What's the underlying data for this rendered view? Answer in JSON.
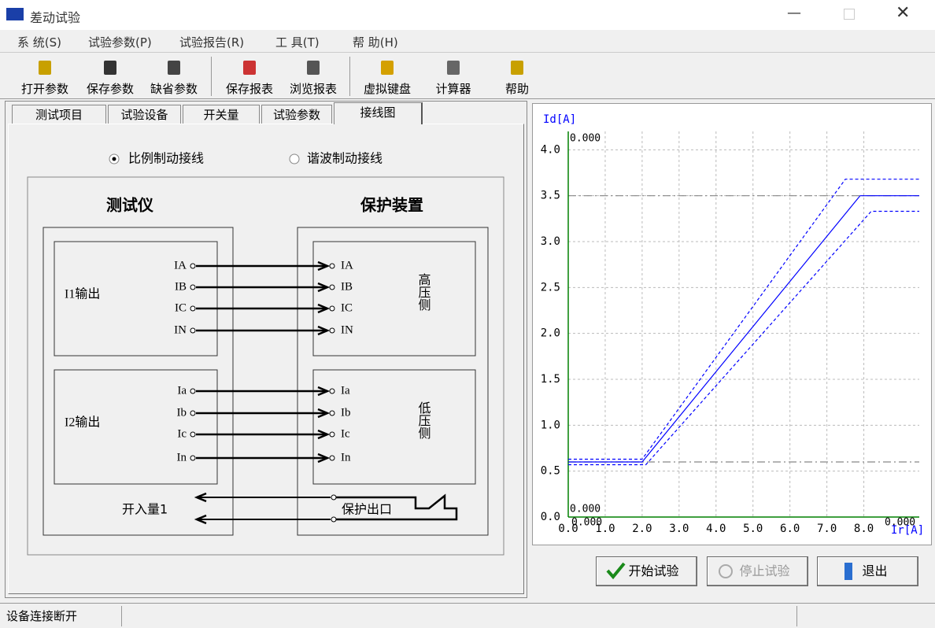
{
  "window": {
    "title": "差动试验"
  },
  "menu": [
    "系 统(S)",
    "试验参数(P)",
    "试验报告(R)",
    "工 具(T)",
    "帮 助(H)"
  ],
  "toolbar": [
    "打开参数",
    "保存参数",
    "缺省参数",
    "保存报表",
    "浏览报表",
    "虚拟键盘",
    "计算器",
    "帮助"
  ],
  "tabs": [
    "测试项目",
    "试验设备",
    "开关量",
    "试验参数",
    "接线图"
  ],
  "wiring": {
    "modes": [
      "比例制动接线",
      "谐波制动接线"
    ],
    "tester_title": "测试仪",
    "device_title": "保护装置",
    "groups": [
      {
        "output": "I1输出",
        "side": "高压侧",
        "channels": [
          "IA",
          "IB",
          "IC",
          "IN"
        ]
      },
      {
        "output": "I2输出",
        "side": "低压侧",
        "channels": [
          "Ia",
          "Ib",
          "Ic",
          "In"
        ]
      }
    ],
    "binary_input": "开入量1",
    "protection_output": "保护出口"
  },
  "plot": {
    "y_label": "Id[A]",
    "x_label": "Ir[A]",
    "xlim": [
      0,
      9.5
    ],
    "ylim": [
      0,
      4.2
    ],
    "xticks": [
      {
        "value": 0,
        "label": "0.0"
      },
      {
        "value": 1,
        "label": "1.0"
      },
      {
        "value": 2,
        "label": "2.0"
      },
      {
        "value": 3,
        "label": "3.0"
      },
      {
        "value": 4,
        "label": "4.0"
      },
      {
        "value": 5,
        "label": "5.0"
      },
      {
        "value": 6,
        "label": "6.0"
      },
      {
        "value": 7,
        "label": "7.0"
      },
      {
        "value": 8,
        "label": "8.0"
      }
    ],
    "yticks": [
      {
        "value": 0,
        "label": "0.0"
      },
      {
        "value": 0.5,
        "label": "0.5"
      },
      {
        "value": 1,
        "label": "1.0"
      },
      {
        "value": 1.5,
        "label": "1.5"
      },
      {
        "value": 2,
        "label": "2.0"
      },
      {
        "value": 2.5,
        "label": "2.5"
      },
      {
        "value": 3,
        "label": "3.0"
      },
      {
        "value": 3.5,
        "label": "3.5"
      },
      {
        "value": 4,
        "label": "4.0"
      }
    ],
    "grid": true,
    "ref_lines": [
      3.5,
      0.6
    ],
    "color": "#0000ff",
    "curves": [
      {
        "style": "solid",
        "x": [
          0,
          2,
          7.9,
          9.5
        ],
        "y": [
          0.6,
          0.6,
          3.5,
          3.5
        ]
      },
      {
        "style": "dashed",
        "x": [
          0,
          2,
          7.5,
          9.5
        ],
        "y": [
          0.63,
          0.63,
          3.68,
          3.68
        ]
      },
      {
        "style": "dashed",
        "x": [
          0,
          2.1,
          8.2,
          9.5
        ],
        "y": [
          0.57,
          0.57,
          3.33,
          3.33
        ]
      }
    ],
    "annotations": [
      "0.000",
      "0.000",
      "0.000",
      "0.000"
    ]
  },
  "buttons": [
    "开始试验",
    "停止试验",
    "退出"
  ],
  "status": "设备连接断开"
}
